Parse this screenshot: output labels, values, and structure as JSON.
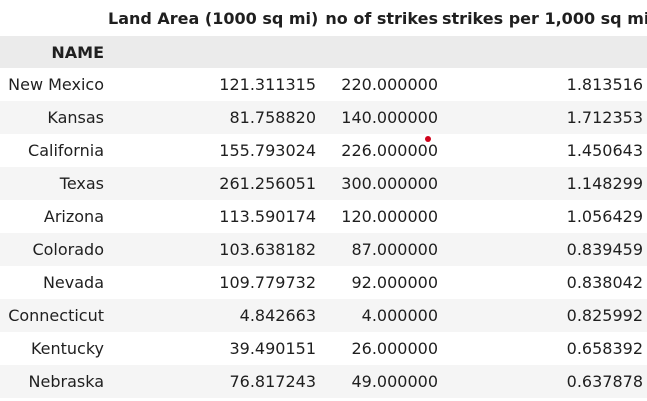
{
  "table": {
    "columns": [
      "",
      "Land Area (1000 sq mi)",
      "no of strikes",
      "strikes per 1,000 sq mi"
    ],
    "index_name": "NAME",
    "rows": [
      [
        "New Mexico",
        "121.311315",
        "220.000000",
        "1.813516"
      ],
      [
        "Kansas",
        "81.758820",
        "140.000000",
        "1.712353"
      ],
      [
        "California",
        "155.793024",
        "226.000000",
        "1.450643"
      ],
      [
        "Texas",
        "261.256051",
        "300.000000",
        "1.148299"
      ],
      [
        "Arizona",
        "113.590174",
        "120.000000",
        "1.056429"
      ],
      [
        "Colorado",
        "103.638182",
        "87.000000",
        "0.839459"
      ],
      [
        "Nevada",
        "109.779732",
        "92.000000",
        "0.838042"
      ],
      [
        "Connecticut",
        "4.842663",
        "4.000000",
        "0.825992"
      ],
      [
        "Kentucky",
        "39.490151",
        "26.000000",
        "0.658392"
      ],
      [
        "Nebraska",
        "76.817243",
        "49.000000",
        "0.637878"
      ]
    ]
  },
  "colors": {
    "index_header_bg": "#ebebeb",
    "stripe_bg": "#f5f5f5",
    "cursor_dot": "#d0021b"
  }
}
